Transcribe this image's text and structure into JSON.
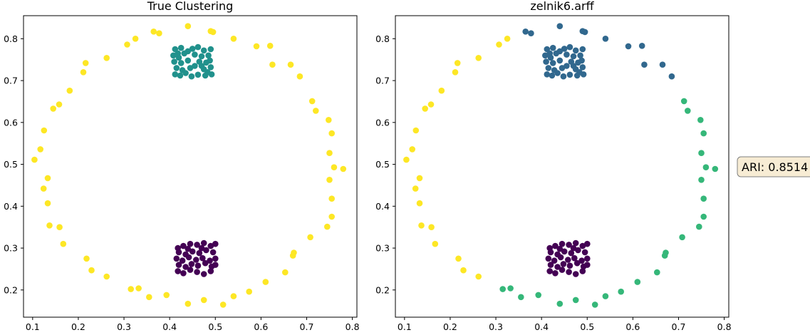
{
  "ari_label": "ARI: 0.8514",
  "colors": {
    "yellow": "#fde725",
    "teal": "#21918c",
    "purple": "#440154",
    "blue": "#31688e",
    "green": "#35b779"
  },
  "chart_data": [
    {
      "type": "scatter",
      "title": "True Clustering",
      "xlabel": "",
      "ylabel": "",
      "xlim": [
        0.08,
        0.81
      ],
      "ylim": [
        0.135,
        0.855
      ],
      "xticks": [
        0.1,
        0.2,
        0.3,
        0.4,
        0.5,
        0.6,
        0.7,
        0.8
      ],
      "yticks": [
        0.2,
        0.3,
        0.4,
        0.5,
        0.6,
        0.7,
        0.8
      ],
      "grid": false,
      "series": [
        {
          "color": "#fde725",
          "points": [
            [
              0.44,
              0.83
            ],
            [
              0.365,
              0.817
            ],
            [
              0.377,
              0.813
            ],
            [
              0.49,
              0.818
            ],
            [
              0.495,
              0.816
            ],
            [
              0.325,
              0.8
            ],
            [
              0.54,
              0.8
            ],
            [
              0.307,
              0.786
            ],
            [
              0.59,
              0.782
            ],
            [
              0.62,
              0.783
            ],
            [
              0.216,
              0.742
            ],
            [
              0.262,
              0.754
            ],
            [
              0.625,
              0.738
            ],
            [
              0.665,
              0.738
            ],
            [
              0.211,
              0.72
            ],
            [
              0.685,
              0.71
            ],
            [
              0.181,
              0.676
            ],
            [
              0.712,
              0.651
            ],
            [
              0.158,
              0.643
            ],
            [
              0.145,
              0.633
            ],
            [
              0.72,
              0.628
            ],
            [
              0.748,
              0.606
            ],
            [
              0.125,
              0.581
            ],
            [
              0.755,
              0.574
            ],
            [
              0.117,
              0.536
            ],
            [
              0.75,
              0.527
            ],
            [
              0.104,
              0.511
            ],
            [
              0.76,
              0.493
            ],
            [
              0.78,
              0.489
            ],
            [
              0.133,
              0.467
            ],
            [
              0.75,
              0.463
            ],
            [
              0.124,
              0.442
            ],
            [
              0.755,
              0.418
            ],
            [
              0.133,
              0.407
            ],
            [
              0.755,
              0.375
            ],
            [
              0.137,
              0.354
            ],
            [
              0.745,
              0.351
            ],
            [
              0.159,
              0.35
            ],
            [
              0.708,
              0.326
            ],
            [
              0.167,
              0.31
            ],
            [
              0.672,
              0.289
            ],
            [
              0.67,
              0.282
            ],
            [
              0.218,
              0.275
            ],
            [
              0.229,
              0.247
            ],
            [
              0.653,
              0.242
            ],
            [
              0.262,
              0.232
            ],
            [
              0.61,
              0.219
            ],
            [
              0.315,
              0.202
            ],
            [
              0.332,
              0.204
            ],
            [
              0.574,
              0.196
            ],
            [
              0.355,
              0.183
            ],
            [
              0.393,
              0.188
            ],
            [
              0.54,
              0.185
            ],
            [
              0.475,
              0.176
            ],
            [
              0.44,
              0.167
            ],
            [
              0.517,
              0.165
            ]
          ]
        },
        {
          "color": "#21918c",
          "points": [
            [
              0.412,
              0.775
            ],
            [
              0.425,
              0.778
            ],
            [
              0.44,
              0.77
            ],
            [
              0.45,
              0.776
            ],
            [
              0.462,
              0.78
            ],
            [
              0.475,
              0.772
            ],
            [
              0.49,
              0.775
            ],
            [
              0.408,
              0.76
            ],
            [
              0.42,
              0.755
            ],
            [
              0.432,
              0.765
            ],
            [
              0.455,
              0.762
            ],
            [
              0.47,
              0.758
            ],
            [
              0.485,
              0.76
            ],
            [
              0.41,
              0.745
            ],
            [
              0.425,
              0.742
            ],
            [
              0.44,
              0.748
            ],
            [
              0.465,
              0.745
            ],
            [
              0.48,
              0.743
            ],
            [
              0.488,
              0.748
            ],
            [
              0.415,
              0.73
            ],
            [
              0.428,
              0.725
            ],
            [
              0.445,
              0.73
            ],
            [
              0.455,
              0.735
            ],
            [
              0.475,
              0.727
            ],
            [
              0.49,
              0.732
            ],
            [
              0.412,
              0.715
            ],
            [
              0.423,
              0.712
            ],
            [
              0.435,
              0.718
            ],
            [
              0.448,
              0.71
            ],
            [
              0.462,
              0.714
            ],
            [
              0.478,
              0.712
            ],
            [
              0.492,
              0.715
            ],
            [
              0.418,
              0.765
            ],
            [
              0.47,
              0.735
            ],
            [
              0.483,
              0.72
            ]
          ]
        },
        {
          "color": "#440154",
          "points": [
            [
              0.418,
              0.3
            ],
            [
              0.43,
              0.305
            ],
            [
              0.445,
              0.31
            ],
            [
              0.46,
              0.308
            ],
            [
              0.475,
              0.312
            ],
            [
              0.49,
              0.305
            ],
            [
              0.5,
              0.31
            ],
            [
              0.42,
              0.29
            ],
            [
              0.435,
              0.285
            ],
            [
              0.45,
              0.292
            ],
            [
              0.465,
              0.288
            ],
            [
              0.48,
              0.295
            ],
            [
              0.495,
              0.29
            ],
            [
              0.415,
              0.275
            ],
            [
              0.428,
              0.27
            ],
            [
              0.442,
              0.278
            ],
            [
              0.458,
              0.272
            ],
            [
              0.472,
              0.276
            ],
            [
              0.488,
              0.27
            ],
            [
              0.5,
              0.275
            ],
            [
              0.42,
              0.26
            ],
            [
              0.435,
              0.255
            ],
            [
              0.448,
              0.262
            ],
            [
              0.462,
              0.258
            ],
            [
              0.478,
              0.264
            ],
            [
              0.492,
              0.256
            ],
            [
              0.418,
              0.245
            ],
            [
              0.43,
              0.24
            ],
            [
              0.445,
              0.248
            ],
            [
              0.46,
              0.243
            ],
            [
              0.475,
              0.238
            ],
            [
              0.49,
              0.245
            ],
            [
              0.5,
              0.26
            ],
            [
              0.44,
              0.298
            ],
            [
              0.47,
              0.3
            ]
          ]
        }
      ]
    },
    {
      "type": "scatter",
      "title": "zelnik6.arff",
      "xlabel": "",
      "ylabel": "",
      "xlim": [
        0.08,
        0.81
      ],
      "ylim": [
        0.135,
        0.855
      ],
      "xticks": [
        0.1,
        0.2,
        0.3,
        0.4,
        0.5,
        0.6,
        0.7,
        0.8
      ],
      "yticks": [
        0.2,
        0.3,
        0.4,
        0.5,
        0.6,
        0.7,
        0.8
      ],
      "grid": false,
      "series": [
        {
          "color": "#fde725",
          "points": [
            [
              0.325,
              0.8
            ],
            [
              0.307,
              0.786
            ],
            [
              0.216,
              0.742
            ],
            [
              0.262,
              0.754
            ],
            [
              0.211,
              0.72
            ],
            [
              0.181,
              0.676
            ],
            [
              0.158,
              0.643
            ],
            [
              0.145,
              0.633
            ],
            [
              0.125,
              0.581
            ],
            [
              0.117,
              0.536
            ],
            [
              0.104,
              0.511
            ],
            [
              0.133,
              0.467
            ],
            [
              0.124,
              0.442
            ],
            [
              0.133,
              0.407
            ],
            [
              0.137,
              0.354
            ],
            [
              0.159,
              0.35
            ],
            [
              0.167,
              0.31
            ],
            [
              0.218,
              0.275
            ],
            [
              0.229,
              0.247
            ],
            [
              0.262,
              0.232
            ]
          ]
        },
        {
          "color": "#31688e",
          "points": [
            [
              0.44,
              0.83
            ],
            [
              0.365,
              0.817
            ],
            [
              0.377,
              0.813
            ],
            [
              0.49,
              0.818
            ],
            [
              0.495,
              0.816
            ],
            [
              0.54,
              0.8
            ],
            [
              0.59,
              0.782
            ],
            [
              0.62,
              0.783
            ],
            [
              0.625,
              0.738
            ],
            [
              0.665,
              0.738
            ],
            [
              0.685,
              0.71
            ],
            [
              0.412,
              0.775
            ],
            [
              0.425,
              0.778
            ],
            [
              0.44,
              0.77
            ],
            [
              0.45,
              0.776
            ],
            [
              0.462,
              0.78
            ],
            [
              0.475,
              0.772
            ],
            [
              0.49,
              0.775
            ],
            [
              0.408,
              0.76
            ],
            [
              0.42,
              0.755
            ],
            [
              0.432,
              0.765
            ],
            [
              0.455,
              0.762
            ],
            [
              0.47,
              0.758
            ],
            [
              0.485,
              0.76
            ],
            [
              0.41,
              0.745
            ],
            [
              0.425,
              0.742
            ],
            [
              0.44,
              0.748
            ],
            [
              0.465,
              0.745
            ],
            [
              0.48,
              0.743
            ],
            [
              0.488,
              0.748
            ],
            [
              0.415,
              0.73
            ],
            [
              0.428,
              0.725
            ],
            [
              0.445,
              0.73
            ],
            [
              0.455,
              0.735
            ],
            [
              0.475,
              0.727
            ],
            [
              0.49,
              0.732
            ],
            [
              0.412,
              0.715
            ],
            [
              0.423,
              0.712
            ],
            [
              0.435,
              0.718
            ],
            [
              0.448,
              0.71
            ],
            [
              0.462,
              0.714
            ],
            [
              0.478,
              0.712
            ],
            [
              0.492,
              0.715
            ],
            [
              0.418,
              0.765
            ],
            [
              0.47,
              0.735
            ],
            [
              0.483,
              0.72
            ]
          ]
        },
        {
          "color": "#35b779",
          "points": [
            [
              0.712,
              0.651
            ],
            [
              0.72,
              0.628
            ],
            [
              0.748,
              0.606
            ],
            [
              0.755,
              0.574
            ],
            [
              0.75,
              0.527
            ],
            [
              0.76,
              0.493
            ],
            [
              0.78,
              0.489
            ],
            [
              0.75,
              0.463
            ],
            [
              0.755,
              0.418
            ],
            [
              0.755,
              0.375
            ],
            [
              0.745,
              0.351
            ],
            [
              0.708,
              0.326
            ],
            [
              0.672,
              0.289
            ],
            [
              0.67,
              0.282
            ],
            [
              0.653,
              0.242
            ],
            [
              0.61,
              0.219
            ],
            [
              0.574,
              0.196
            ],
            [
              0.54,
              0.185
            ],
            [
              0.517,
              0.165
            ],
            [
              0.475,
              0.176
            ],
            [
              0.44,
              0.167
            ],
            [
              0.393,
              0.188
            ],
            [
              0.355,
              0.183
            ],
            [
              0.332,
              0.204
            ],
            [
              0.315,
              0.202
            ]
          ]
        },
        {
          "color": "#440154",
          "points": [
            [
              0.418,
              0.3
            ],
            [
              0.43,
              0.305
            ],
            [
              0.445,
              0.31
            ],
            [
              0.46,
              0.308
            ],
            [
              0.475,
              0.312
            ],
            [
              0.49,
              0.305
            ],
            [
              0.5,
              0.31
            ],
            [
              0.42,
              0.29
            ],
            [
              0.435,
              0.285
            ],
            [
              0.45,
              0.292
            ],
            [
              0.465,
              0.288
            ],
            [
              0.48,
              0.295
            ],
            [
              0.495,
              0.29
            ],
            [
              0.415,
              0.275
            ],
            [
              0.428,
              0.27
            ],
            [
              0.442,
              0.278
            ],
            [
              0.458,
              0.272
            ],
            [
              0.472,
              0.276
            ],
            [
              0.488,
              0.27
            ],
            [
              0.5,
              0.275
            ],
            [
              0.42,
              0.26
            ],
            [
              0.435,
              0.255
            ],
            [
              0.448,
              0.262
            ],
            [
              0.462,
              0.258
            ],
            [
              0.478,
              0.264
            ],
            [
              0.492,
              0.256
            ],
            [
              0.418,
              0.245
            ],
            [
              0.43,
              0.24
            ],
            [
              0.445,
              0.248
            ],
            [
              0.46,
              0.243
            ],
            [
              0.475,
              0.238
            ],
            [
              0.49,
              0.245
            ],
            [
              0.5,
              0.26
            ],
            [
              0.44,
              0.298
            ],
            [
              0.47,
              0.3
            ]
          ]
        }
      ]
    }
  ]
}
